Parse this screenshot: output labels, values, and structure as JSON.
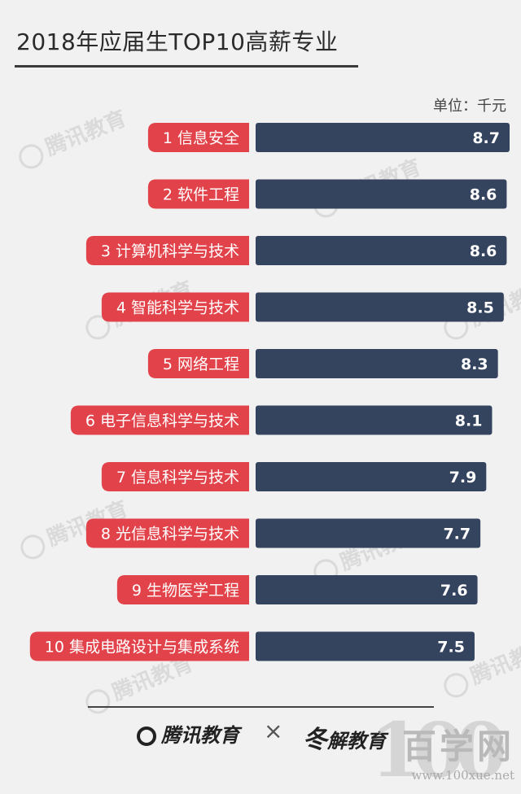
{
  "title": "2018年应届生TOP10高薪专业",
  "unit_label": "单位：千元",
  "chart_data": {
    "type": "bar",
    "orientation": "horizontal",
    "title": "2018年应届生TOP10高薪专业",
    "unit": "单位：千元",
    "categories": [
      "1 信息安全",
      "2 软件工程",
      "3 计算机科学与技术",
      "4 智能科学与技术",
      "5 网络工程",
      "6 电子信息科学与技术",
      "7 信息科学与技术",
      "8 光信息科学与技术",
      "9 生物医学工程",
      "10 集成电路设计与集成系统"
    ],
    "values": [
      8.7,
      8.6,
      8.6,
      8.5,
      8.3,
      8.1,
      7.9,
      7.7,
      7.6,
      7.5
    ],
    "value_labels": [
      "8.7",
      "8.6",
      "8.6",
      "8.5",
      "8.3",
      "8.1",
      "7.9",
      "7.7",
      "7.6",
      "7.5"
    ],
    "xlim": [
      0,
      8.7
    ],
    "grid": false,
    "legend": "none",
    "bar_color": "#34435e",
    "label_color": "#e2434a"
  },
  "footer": {
    "logo_left": "腾讯教育",
    "times": "×",
    "logo_right": "解教育",
    "site_name": "百学网",
    "site_url": "www.100xue.net",
    "site_digits": "100"
  },
  "watermark": "腾讯教育"
}
